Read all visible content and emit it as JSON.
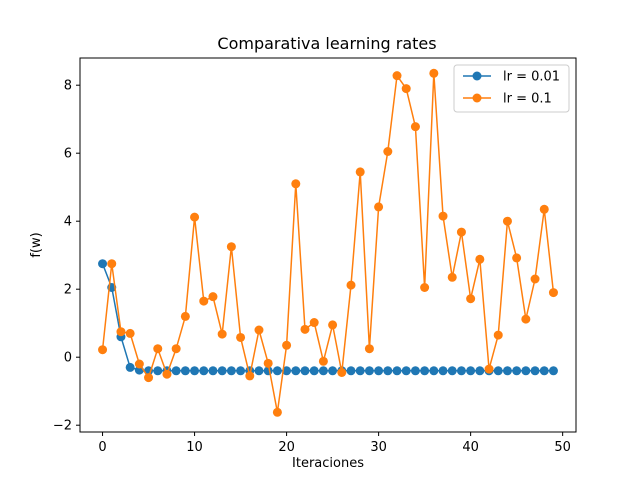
{
  "colors": {
    "series_1": "#1f77b4",
    "series_2": "#ff7f0e"
  },
  "chart_data": {
    "type": "line",
    "title": "Comparativa learning rates",
    "xlabel": "Iteraciones",
    "ylabel": "f(w)",
    "xlim": [
      -2.45,
      51.45
    ],
    "ylim": [
      -2.2,
      8.8
    ],
    "xticks": [
      0,
      10,
      20,
      30,
      40,
      50
    ],
    "yticks": [
      -2,
      0,
      2,
      4,
      6,
      8
    ],
    "grid": false,
    "legend_position": "top-right",
    "x": [
      0,
      1,
      2,
      3,
      4,
      5,
      6,
      7,
      8,
      9,
      10,
      11,
      12,
      13,
      14,
      15,
      16,
      17,
      18,
      19,
      20,
      21,
      22,
      23,
      24,
      25,
      26,
      27,
      28,
      29,
      30,
      31,
      32,
      33,
      34,
      35,
      36,
      37,
      38,
      39,
      40,
      41,
      42,
      43,
      44,
      45,
      46,
      47,
      48,
      49
    ],
    "series": [
      {
        "name": "lr = 0.01",
        "color": "#1f77b4",
        "marker": "circle",
        "values": [
          2.75,
          2.05,
          0.6,
          -0.3,
          -0.38,
          -0.4,
          -0.4,
          -0.4,
          -0.4,
          -0.4,
          -0.4,
          -0.4,
          -0.4,
          -0.4,
          -0.4,
          -0.4,
          -0.4,
          -0.4,
          -0.4,
          -0.4,
          -0.4,
          -0.4,
          -0.4,
          -0.4,
          -0.4,
          -0.4,
          -0.4,
          -0.4,
          -0.4,
          -0.4,
          -0.4,
          -0.4,
          -0.4,
          -0.4,
          -0.4,
          -0.4,
          -0.4,
          -0.4,
          -0.4,
          -0.4,
          -0.4,
          -0.4,
          -0.4,
          -0.4,
          -0.4,
          -0.4,
          -0.4,
          -0.4,
          -0.4,
          -0.4
        ]
      },
      {
        "name": "lr = 0.1",
        "color": "#ff7f0e",
        "marker": "circle",
        "values": [
          0.22,
          2.75,
          0.75,
          0.7,
          -0.2,
          -0.6,
          0.25,
          -0.5,
          0.25,
          1.2,
          4.12,
          1.65,
          1.78,
          0.68,
          3.25,
          0.58,
          -0.55,
          0.8,
          -0.18,
          -1.62,
          0.35,
          5.1,
          0.82,
          1.02,
          -0.12,
          0.95,
          -0.45,
          2.12,
          5.45,
          0.25,
          4.42,
          6.05,
          8.28,
          7.9,
          6.78,
          2.05,
          8.35,
          4.15,
          2.35,
          3.68,
          1.72,
          2.88,
          -0.35,
          0.65,
          4.0,
          2.92,
          1.12,
          2.3,
          4.35,
          1.9
        ]
      }
    ]
  }
}
